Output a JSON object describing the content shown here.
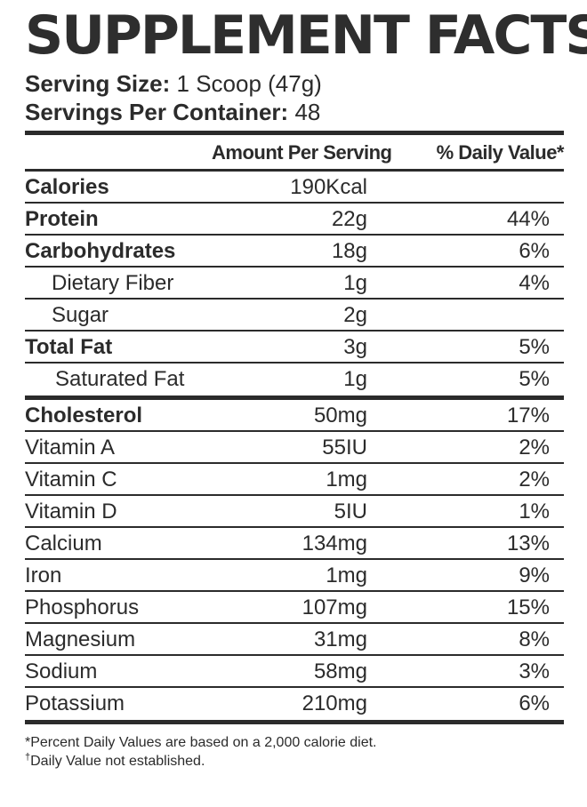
{
  "title": "SUPPLEMENT FACTS",
  "serving": {
    "size_label": "Serving Size:",
    "size_value": "1 Scoop (47g)",
    "per_container_label": "Servings Per Container:",
    "per_container_value": "48"
  },
  "table": {
    "header_amount": "Amount Per Serving",
    "header_daily": "% Daily Value*",
    "group1": [
      {
        "name": "Calories",
        "amount": "190Kcal",
        "daily": ""
      },
      {
        "name": "Protein",
        "amount": "22g",
        "daily": "44%"
      },
      {
        "name": "Carbohydrates",
        "amount": "18g",
        "daily": "6%"
      },
      {
        "name": "Dietary Fiber",
        "amount": "1g",
        "daily": "4%"
      },
      {
        "name": "Sugar",
        "amount": "2g",
        "daily": ""
      },
      {
        "name": "Total Fat",
        "amount": "3g",
        "daily": "5%"
      },
      {
        "name": "Saturated Fat",
        "amount": "1g",
        "daily": "5%"
      }
    ],
    "group2": [
      {
        "name": "Cholesterol",
        "amount": "50mg",
        "daily": "17%"
      },
      {
        "name": "Vitamin A",
        "amount": "55IU",
        "daily": "2%"
      },
      {
        "name": "Vitamin C",
        "amount": "1mg",
        "daily": "2%"
      },
      {
        "name": "Vitamin D",
        "amount": "5IU",
        "daily": "1%"
      },
      {
        "name": "Calcium",
        "amount": "134mg",
        "daily": "13%"
      },
      {
        "name": "Iron",
        "amount": "1mg",
        "daily": "9%"
      },
      {
        "name": "Phosphorus",
        "amount": "107mg",
        "daily": "15%"
      },
      {
        "name": "Magnesium",
        "amount": "31mg",
        "daily": "8%"
      },
      {
        "name": "Sodium",
        "amount": "58mg",
        "daily": "3%"
      },
      {
        "name": "Potassium",
        "amount": "210mg",
        "daily": "6%"
      }
    ]
  },
  "footnotes": {
    "note1": "*Percent Daily Values are based on a 2,000 calorie diet.",
    "note2_mark": "†",
    "note2": "Daily Value not established."
  }
}
